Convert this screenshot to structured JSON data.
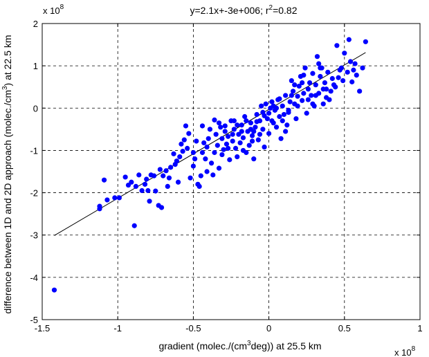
{
  "chart_data": {
    "type": "scatter",
    "title": "y=2.1x+-3e+006; r",
    "title_sup": "2",
    "title_tail": "=0.82",
    "xlabel_pre": "gradient (molec./(cm",
    "xlabel_sup": "3",
    "xlabel_post": "deg)) at 25.5 km",
    "ylabel_pre": "difference between 1D and 2D approach (molec./cm",
    "ylabel_sup": "3",
    "ylabel_post": ") at 22.5 km",
    "x_multiplier": "x 10",
    "x_multiplier_exp": "8",
    "y_multiplier": "x 10",
    "y_multiplier_exp": "8",
    "x_scale": 100000000,
    "y_scale": 100000000,
    "xlim": [
      -1.5,
      1
    ],
    "ylim": [
      -5,
      2
    ],
    "x_ticks": [
      -1.5,
      -1,
      -0.5,
      0,
      0.5,
      1
    ],
    "x_tick_labels": [
      "-1.5",
      "-1",
      "-0.5",
      "0",
      "0.5",
      "1"
    ],
    "y_ticks": [
      -5,
      -4,
      -3,
      -2,
      -1,
      0,
      1,
      2
    ],
    "y_tick_labels": [
      "-5",
      "-4",
      "-3",
      "-2",
      "-1",
      "0",
      "1",
      "2"
    ],
    "grid": true,
    "marker_color": "#0000ff",
    "line_color": "#000000",
    "fit": {
      "slope": 2.1,
      "intercept": -0.03,
      "x_start": -1.42,
      "x_end": 0.64
    },
    "points": [
      [
        -1.42,
        -4.3
      ],
      [
        -1.12,
        -2.32
      ],
      [
        -1.12,
        -2.38
      ],
      [
        -1.09,
        -1.7
      ],
      [
        -1.07,
        -2.17
      ],
      [
        -1.02,
        -2.12
      ],
      [
        -0.99,
        -2.12
      ],
      [
        -0.95,
        -1.63
      ],
      [
        -0.93,
        -1.82
      ],
      [
        -0.91,
        -1.75
      ],
      [
        -0.89,
        -2.78
      ],
      [
        -0.88,
        -1.85
      ],
      [
        -0.86,
        -1.58
      ],
      [
        -0.84,
        -1.95
      ],
      [
        -0.82,
        -1.8
      ],
      [
        -0.81,
        -1.68
      ],
      [
        -0.79,
        -2.2
      ],
      [
        -0.78,
        -1.58
      ],
      [
        -0.75,
        -1.96
      ],
      [
        -0.73,
        -2.3
      ],
      [
        -0.71,
        -2.35
      ],
      [
        -0.7,
        -1.6
      ],
      [
        -0.68,
        -1.48
      ],
      [
        -0.67,
        -1.85
      ],
      [
        -0.65,
        -1.4
      ],
      [
        -0.62,
        -1.33
      ],
      [
        -0.6,
        -1.75
      ],
      [
        -0.59,
        -1.15
      ],
      [
        -0.57,
        -1.02
      ],
      [
        -0.56,
        -0.75
      ],
      [
        -0.55,
        -0.42
      ],
      [
        -0.54,
        -0.95
      ],
      [
        -0.52,
        -1.65
      ],
      [
        -0.5,
        -1.37
      ],
      [
        -0.49,
        -1.2
      ],
      [
        -0.47,
        -1.8
      ],
      [
        -0.46,
        -1.85
      ],
      [
        -0.45,
        -1.6
      ],
      [
        -0.44,
        -1.05
      ],
      [
        -0.43,
        -0.82
      ],
      [
        -0.42,
        -1.2
      ],
      [
        -0.41,
        -0.92
      ],
      [
        -0.4,
        -0.72
      ],
      [
        -0.38,
        -1.3
      ],
      [
        -0.37,
        -1.58
      ],
      [
        -0.36,
        -1.05
      ],
      [
        -0.35,
        -0.62
      ],
      [
        -0.34,
        -0.88
      ],
      [
        -0.33,
        -1.42
      ],
      [
        -0.32,
        -0.45
      ],
      [
        -0.31,
        -0.72
      ],
      [
        -0.3,
        -0.98
      ],
      [
        -0.29,
        -0.55
      ],
      [
        -0.28,
        -0.85
      ],
      [
        -0.27,
        -0.67
      ],
      [
        -0.26,
        -1.22
      ],
      [
        -0.25,
        -0.3
      ],
      [
        -0.24,
        -0.78
      ],
      [
        -0.23,
        -0.5
      ],
      [
        -0.22,
        -0.95
      ],
      [
        -0.21,
        -1.15
      ],
      [
        -0.2,
        -0.62
      ],
      [
        -0.19,
        -0.82
      ],
      [
        -0.18,
        -0.4
      ],
      [
        -0.17,
        -0.7
      ],
      [
        -0.16,
        -0.2
      ],
      [
        -0.15,
        -1.05
      ],
      [
        -0.14,
        -0.55
      ],
      [
        -0.13,
        -0.88
      ],
      [
        -0.12,
        -0.35
      ],
      [
        -0.11,
        -0.65
      ],
      [
        -0.1,
        -1.2
      ],
      [
        -0.09,
        -0.45
      ],
      [
        -0.08,
        -0.15
      ],
      [
        -0.07,
        -0.75
      ],
      [
        -0.06,
        -0.3
      ],
      [
        -0.05,
        0.05
      ],
      [
        -0.04,
        -0.5
      ],
      [
        -0.03,
        -0.92
      ],
      [
        -0.02,
        0.1
      ],
      [
        -0.01,
        -0.25
      ],
      [
        0.0,
        -0.6
      ],
      [
        0.01,
        0.0
      ],
      [
        0.02,
        0.15
      ],
      [
        0.03,
        -0.35
      ],
      [
        0.04,
        -0.05
      ],
      [
        0.05,
        -0.45
      ],
      [
        0.06,
        0.2
      ],
      [
        0.07,
        -0.2
      ],
      [
        0.08,
        -0.72
      ],
      [
        0.09,
        0.05
      ],
      [
        0.1,
        -0.15
      ],
      [
        0.11,
        0.3
      ],
      [
        0.12,
        -0.4
      ],
      [
        0.13,
        -0.05
      ],
      [
        0.14,
        0.15
      ],
      [
        0.15,
        0.65
      ],
      [
        0.16,
        0.4
      ],
      [
        0.17,
        0.1
      ],
      [
        0.18,
        -0.25
      ],
      [
        0.19,
        0.28
      ],
      [
        0.2,
        0.52
      ],
      [
        0.21,
        0.75
      ],
      [
        0.22,
        0.18
      ],
      [
        0.23,
        0.35
      ],
      [
        0.24,
        0.95
      ],
      [
        0.25,
        -0.12
      ],
      [
        0.26,
        0.45
      ],
      [
        0.27,
        0.6
      ],
      [
        0.28,
        0.3
      ],
      [
        0.29,
        0.82
      ],
      [
        0.3,
        0.05
      ],
      [
        0.31,
        0.55
      ],
      [
        0.32,
        1.22
      ],
      [
        0.33,
        0.35
      ],
      [
        0.34,
        0.75
      ],
      [
        0.35,
        0.95
      ],
      [
        0.36,
        0.1
      ],
      [
        0.37,
        0.6
      ],
      [
        0.38,
        0.45
      ],
      [
        0.39,
        0.85
      ],
      [
        0.4,
        0.2
      ],
      [
        0.42,
        0.7
      ],
      [
        0.44,
        0.5
      ],
      [
        0.45,
        1.48
      ],
      [
        0.47,
        0.9
      ],
      [
        0.49,
        0.65
      ],
      [
        0.5,
        1.3
      ],
      [
        0.52,
        0.85
      ],
      [
        0.53,
        1.62
      ],
      [
        0.54,
        1.1
      ],
      [
        0.55,
        0.62
      ],
      [
        0.57,
        1.05
      ],
      [
        0.58,
        0.78
      ],
      [
        0.6,
        0.4
      ],
      [
        0.62,
        0.95
      ],
      [
        0.64,
        1.57
      ],
      [
        -0.72,
        -1.45
      ],
      [
        -0.63,
        -1.08
      ],
      [
        -0.53,
        -0.6
      ],
      [
        -0.48,
        -0.78
      ],
      [
        -0.39,
        -0.5
      ],
      [
        -0.33,
        -0.35
      ],
      [
        -0.27,
        -0.95
      ],
      [
        -0.21,
        -0.4
      ],
      [
        -0.15,
        -0.3
      ],
      [
        -0.1,
        -0.55
      ],
      [
        -0.04,
        -0.1
      ],
      [
        0.02,
        -0.3
      ],
      [
        0.07,
        0.22
      ],
      [
        0.13,
        -0.1
      ],
      [
        0.19,
        0.05
      ],
      [
        0.26,
        0.2
      ],
      [
        0.31,
        0.3
      ],
      [
        0.36,
        0.45
      ],
      [
        0.41,
        0.4
      ],
      [
        0.46,
        0.72
      ],
      [
        -0.58,
        -0.85
      ],
      [
        -0.44,
        -0.42
      ],
      [
        -0.36,
        -0.28
      ],
      [
        -0.29,
        -0.42
      ],
      [
        -0.24,
        -0.62
      ],
      [
        -0.18,
        -0.55
      ],
      [
        -0.12,
        -0.5
      ],
      [
        -0.08,
        -0.32
      ],
      [
        -0.03,
        -0.18
      ],
      [
        0.03,
        0.05
      ],
      [
        0.09,
        -0.3
      ],
      [
        0.15,
        0.3
      ],
      [
        0.22,
        0.6
      ],
      [
        0.29,
        0.1
      ],
      [
        0.34,
        0.95
      ],
      [
        0.38,
        0.25
      ],
      [
        -0.8,
        -1.95
      ],
      [
        -0.76,
        -1.6
      ],
      [
        -0.66,
        -1.65
      ],
      [
        -0.61,
        -1.25
      ],
      [
        -0.5,
        -1.05
      ],
      [
        -0.41,
        -1.5
      ],
      [
        -0.31,
        -1.1
      ],
      [
        -0.23,
        -0.3
      ],
      [
        -0.17,
        -1.0
      ],
      [
        -0.11,
        -0.78
      ],
      [
        -0.06,
        -0.62
      ],
      [
        0.0,
        -0.12
      ],
      [
        0.05,
        0.0
      ],
      [
        0.11,
        -0.55
      ],
      [
        0.17,
        0.55
      ],
      [
        0.23,
        0.78
      ],
      [
        0.33,
        1.05
      ],
      [
        0.43,
        0.55
      ],
      [
        0.48,
        0.95
      ],
      [
        0.56,
        0.9
      ]
    ]
  }
}
